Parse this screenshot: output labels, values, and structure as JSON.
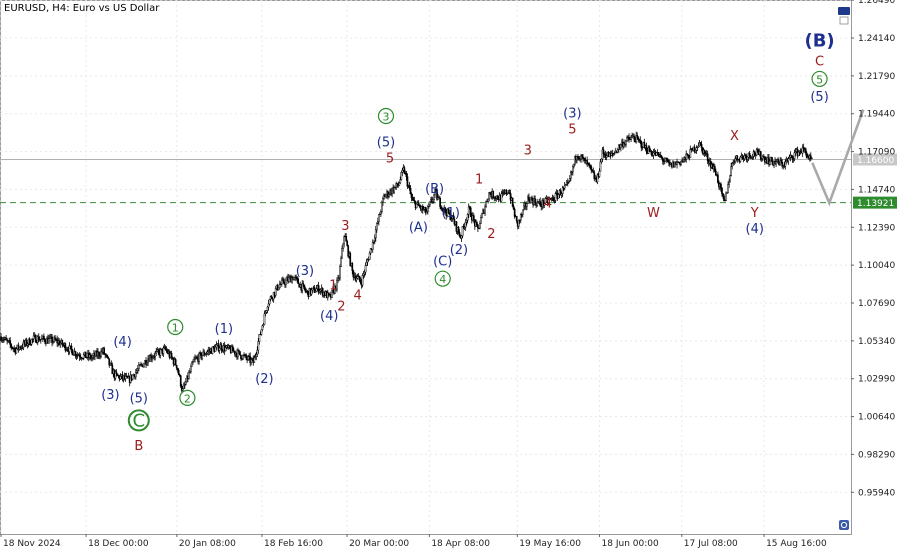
{
  "header": {
    "symbol_title": "EURUSD, H4:  Euro vs US Dollar"
  },
  "colors": {
    "candle": "#000000",
    "grid": "#e8e8e8",
    "blue_label": "#1f2f8f",
    "red_label": "#9b1b1b",
    "green_label": "#2e8b2e",
    "projection": "#a9a9a9",
    "level_line": "#3c8c3c",
    "level_tag_bg": "#2e8b2e",
    "current_line": "#b0b0b0",
    "current_tag_bg": "#c8c8c8"
  },
  "chart_data": {
    "type": "candlestick",
    "title": "",
    "xlabel": "",
    "ylabel": "",
    "ylim": [
      0.9335,
      1.265
    ],
    "y_ticks": [
      "1.26490",
      "1.24140",
      "1.21790",
      "1.19440",
      "1.17090",
      "1.14740",
      "1.12390",
      "1.10040",
      "1.07690",
      "1.05340",
      "1.02990",
      "1.00640",
      "0.98290",
      "0.95940"
    ],
    "x_tick_labels": [
      "18 Nov 2024",
      "18 Dec 00:00",
      "20 Jan 08:00",
      "18 Feb 16:00",
      "20 Mar 00:00",
      "18 Apr 08:00",
      "19 May 16:00",
      "18 Jun 00:00",
      "17 Jul 08:00",
      "15 Aug 16:00"
    ],
    "x_range_days": [
      0,
      300
    ],
    "x_tick_days": [
      0,
      30,
      62,
      92,
      122,
      151,
      182,
      211,
      240,
      269
    ],
    "price_path": [
      [
        0,
        1.056
      ],
      [
        5,
        1.048
      ],
      [
        12,
        1.055
      ],
      [
        20,
        1.053
      ],
      [
        27,
        1.045
      ],
      [
        32,
        1.043
      ],
      [
        36,
        1.047
      ],
      [
        40,
        1.032
      ],
      [
        45,
        1.029
      ],
      [
        52,
        1.043
      ],
      [
        58,
        1.048
      ],
      [
        62,
        1.038
      ],
      [
        64,
        1.022
      ],
      [
        68,
        1.041
      ],
      [
        72,
        1.046
      ],
      [
        77,
        1.05
      ],
      [
        82,
        1.047
      ],
      [
        89,
        1.04
      ],
      [
        94,
        1.077
      ],
      [
        98,
        1.088
      ],
      [
        103,
        1.093
      ],
      [
        108,
        1.083
      ],
      [
        112,
        1.086
      ],
      [
        116,
        1.08
      ],
      [
        119,
        1.091
      ],
      [
        121,
        1.12
      ],
      [
        124,
        1.095
      ],
      [
        127,
        1.09
      ],
      [
        131,
        1.114
      ],
      [
        135,
        1.143
      ],
      [
        140,
        1.15
      ],
      [
        142,
        1.16
      ],
      [
        145,
        1.14
      ],
      [
        150,
        1.133
      ],
      [
        153,
        1.145
      ],
      [
        156,
        1.135
      ],
      [
        159,
        1.13
      ],
      [
        162,
        1.118
      ],
      [
        165,
        1.135
      ],
      [
        168,
        1.122
      ],
      [
        172,
        1.145
      ],
      [
        176,
        1.142
      ],
      [
        179,
        1.147
      ],
      [
        182,
        1.125
      ],
      [
        186,
        1.142
      ],
      [
        190,
        1.138
      ],
      [
        195,
        1.142
      ],
      [
        200,
        1.15
      ],
      [
        203,
        1.17
      ],
      [
        207,
        1.162
      ],
      [
        210,
        1.152
      ],
      [
        212,
        1.17
      ],
      [
        215,
        1.168
      ],
      [
        219,
        1.176
      ],
      [
        223,
        1.18
      ],
      [
        228,
        1.172
      ],
      [
        232,
        1.168
      ],
      [
        236,
        1.162
      ],
      [
        241,
        1.166
      ],
      [
        246,
        1.176
      ],
      [
        248,
        1.17
      ],
      [
        252,
        1.158
      ],
      [
        255,
        1.138
      ],
      [
        258,
        1.166
      ],
      [
        262,
        1.168
      ],
      [
        266,
        1.17
      ],
      [
        271,
        1.165
      ],
      [
        276,
        1.163
      ],
      [
        280,
        1.17
      ],
      [
        283,
        1.172
      ],
      [
        286,
        1.164
      ]
    ],
    "projection_path": [
      [
        286,
        1.164
      ],
      [
        292,
        1.139
      ],
      [
        304,
        1.197
      ]
    ],
    "horizontal_lines": [
      {
        "price": 1.13921,
        "label": "1.13921",
        "style": "dashed"
      },
      {
        "price": 1.166,
        "label": "1.16600",
        "style": "solid"
      }
    ],
    "annotations": [
      {
        "text": "(4)",
        "x": 30,
        "y": 1.053,
        "color": "blue"
      },
      {
        "text": "(3)",
        "x": 27,
        "y": 1.02,
        "color": "blue"
      },
      {
        "text": "(5)",
        "x": 34,
        "y": 1.018,
        "color": "blue"
      },
      {
        "text": "C",
        "x": 34,
        "y": 1.004,
        "color": "green",
        "style": "circle-big"
      },
      {
        "text": "B",
        "x": 34,
        "y": 0.9885,
        "color": "red"
      },
      {
        "text": "1",
        "x": 43,
        "y": 1.062,
        "color": "green",
        "style": "circle"
      },
      {
        "text": "2",
        "x": 46,
        "y": 1.018,
        "color": "green",
        "style": "circle"
      },
      {
        "text": "(1)",
        "x": 55,
        "y": 1.061,
        "color": "blue"
      },
      {
        "text": "(2)",
        "x": 65,
        "y": 1.03,
        "color": "blue"
      },
      {
        "text": "(3)",
        "x": 75,
        "y": 1.097,
        "color": "blue"
      },
      {
        "text": "(4)",
        "x": 81,
        "y": 1.069,
        "color": "blue"
      },
      {
        "text": "1",
        "x": 82,
        "y": 1.088,
        "color": "red"
      },
      {
        "text": "2",
        "x": 84,
        "y": 1.075,
        "color": "red"
      },
      {
        "text": "3",
        "x": 85,
        "y": 1.125,
        "color": "red"
      },
      {
        "text": "4",
        "x": 88,
        "y": 1.082,
        "color": "red"
      },
      {
        "text": "3",
        "x": 95,
        "y": 1.193,
        "color": "green",
        "style": "circle"
      },
      {
        "text": "(5)",
        "x": 95,
        "y": 1.177,
        "color": "blue"
      },
      {
        "text": "5",
        "x": 96,
        "y": 1.167,
        "color": "red"
      },
      {
        "text": "(B)",
        "x": 107,
        "y": 1.148,
        "color": "blue"
      },
      {
        "text": "(A)",
        "x": 103,
        "y": 1.124,
        "color": "blue"
      },
      {
        "text": "(1)",
        "x": 111,
        "y": 1.133,
        "color": "blue"
      },
      {
        "text": "(2)",
        "x": 113,
        "y": 1.11,
        "color": "blue"
      },
      {
        "text": "(C)",
        "x": 109,
        "y": 1.103,
        "color": "blue"
      },
      {
        "text": "4",
        "x": 109,
        "y": 1.092,
        "color": "green",
        "style": "circle"
      },
      {
        "text": "1",
        "x": 118,
        "y": 1.154,
        "color": "red"
      },
      {
        "text": "2",
        "x": 121,
        "y": 1.12,
        "color": "red"
      },
      {
        "text": "3",
        "x": 130,
        "y": 1.172,
        "color": "red"
      },
      {
        "text": "4",
        "x": 135,
        "y": 1.139,
        "color": "red"
      },
      {
        "text": "(3)",
        "x": 141,
        "y": 1.195,
        "color": "blue"
      },
      {
        "text": "5",
        "x": 141,
        "y": 1.185,
        "color": "red"
      },
      {
        "text": "W",
        "x": 161,
        "y": 1.133,
        "color": "red"
      },
      {
        "text": "X",
        "x": 181,
        "y": 1.181,
        "color": "red"
      },
      {
        "text": "Y",
        "x": 186,
        "y": 1.133,
        "color": "red"
      },
      {
        "text": "(4)",
        "x": 186,
        "y": 1.123,
        "color": "blue"
      },
      {
        "text": "(B)",
        "x": 202,
        "y": 1.239,
        "color": "blue",
        "style": "large"
      },
      {
        "text": "C",
        "x": 202,
        "y": 1.227,
        "color": "red"
      },
      {
        "text": "5",
        "x": 202,
        "y": 1.216,
        "color": "green",
        "style": "circle"
      },
      {
        "text": "(5)",
        "x": 202,
        "y": 1.205,
        "color": "blue"
      }
    ]
  }
}
